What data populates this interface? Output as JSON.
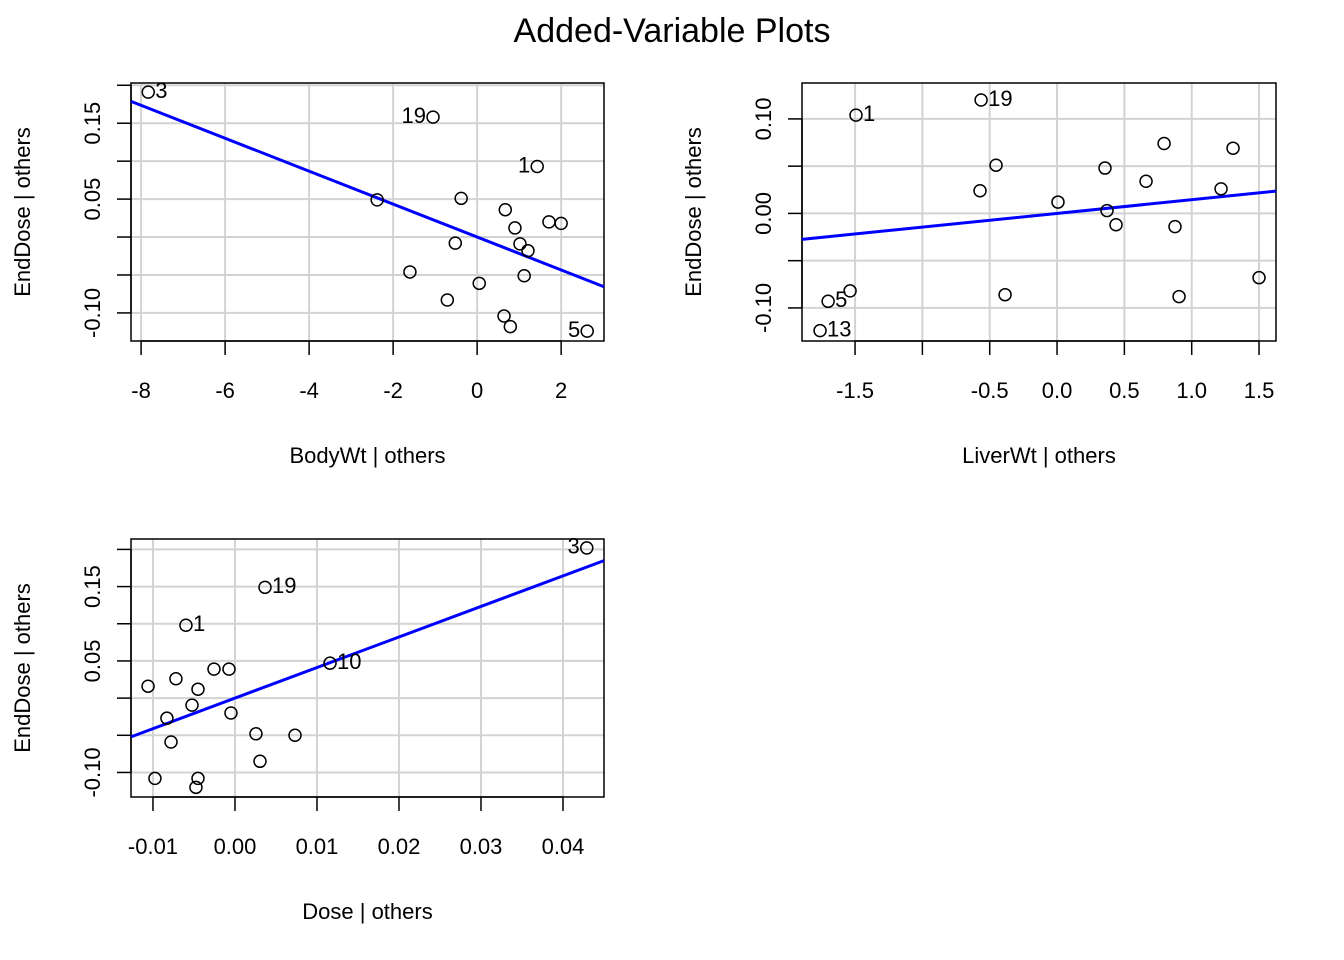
{
  "title": "Added-Variable Plots",
  "chart_data": [
    {
      "type": "scatter",
      "x_label": "BodyWt | others",
      "y_label": "EndDose  | others",
      "x": [
        -7.83,
        -1.05,
        1.43,
        -2.38,
        -0.38,
        0.67,
        0.9,
        1.71,
        2.0,
        1.02,
        1.21,
        -0.52,
        -1.6,
        1.12,
        0.05,
        -0.71,
        0.64,
        0.79,
        2.62
      ],
      "y": [
        0.191,
        0.158,
        0.093,
        0.049,
        0.051,
        0.036,
        0.012,
        0.02,
        0.018,
        -0.009,
        -0.018,
        -0.008,
        -0.046,
        -0.051,
        -0.061,
        -0.083,
        -0.104,
        -0.118,
        -0.124
      ],
      "point_labels": [
        "3",
        "19",
        "1",
        null,
        null,
        null,
        null,
        null,
        null,
        null,
        null,
        null,
        null,
        null,
        null,
        null,
        null,
        null,
        "5"
      ],
      "xlim": [
        -8.24,
        3.02
      ],
      "ylim": [
        -0.137,
        0.203
      ],
      "xticks": [
        -8,
        -6,
        -4,
        -2,
        0,
        2
      ],
      "yticks": [
        {
          "value": -0.1,
          "label": "-0.10"
        },
        0.05,
        0.15
      ],
      "yminor_ticks": [
        -0.05,
        0,
        0.1,
        0.2
      ],
      "grid": true,
      "point_color": "#000000",
      "fit_line": {
        "slope": -0.0217,
        "intercept": 0,
        "color": "#0000ff"
      }
    },
    {
      "type": "scatter",
      "x_label": "LiverWt | others",
      "y_label": "EndDose  | others",
      "x": [
        -0.564,
        -1.493,
        -0.453,
        -0.572,
        0.007,
        0.356,
        0.795,
        1.307,
        0.661,
        1.218,
        0.371,
        0.438,
        0.876,
        -0.386,
        0.906,
        1.5,
        -1.537,
        -1.7,
        -1.76
      ],
      "y": [
        0.12,
        0.104,
        0.051,
        0.024,
        0.012,
        0.048,
        0.074,
        0.069,
        0.034,
        0.026,
        0.003,
        -0.012,
        -0.014,
        -0.086,
        -0.088,
        -0.068,
        -0.082,
        -0.093,
        -0.124
      ],
      "point_labels": [
        "19",
        "1",
        null,
        null,
        null,
        null,
        null,
        null,
        null,
        null,
        null,
        null,
        null,
        null,
        null,
        null,
        null,
        "5",
        "13"
      ],
      "xlim": [
        -1.894,
        1.626
      ],
      "ylim": [
        -0.135,
        0.138
      ],
      "xticks": [
        -1.5,
        -0.5,
        {
          "value": 0,
          "label": "0.0"
        },
        0.5,
        {
          "value": 1,
          "label": "1.0"
        },
        1.5
      ],
      "xminor_ticks": [
        -1
      ],
      "yticks": [
        {
          "value": -0.1,
          "label": "-0.10"
        },
        {
          "value": 0,
          "label": "0.00"
        },
        {
          "value": 0.1,
          "label": "0.10"
        }
      ],
      "yminor_ticks": [
        -0.05,
        0.05
      ],
      "grid": true,
      "point_color": "#000000",
      "fit_line": {
        "slope": 0.0145,
        "intercept": 0,
        "color": "#0000ff"
      }
    },
    {
      "type": "scatter",
      "x_label": "Dose | others",
      "y_label": "EndDose  | others",
      "x": [
        0.0429,
        0.00366,
        -0.00598,
        0.01159,
        -0.00256,
        -0.00073,
        -0.0106,
        -0.0072,
        -0.00451,
        -0.00524,
        -0.00049,
        -0.0083,
        -0.0078,
        0.00256,
        0.00732,
        0.00305,
        -0.00976,
        -0.00451,
        -0.00476
      ],
      "y": [
        0.202,
        0.149,
        0.098,
        0.047,
        0.039,
        0.039,
        0.016,
        0.026,
        0.012,
        -0.0094,
        -0.02,
        -0.027,
        -0.059,
        -0.048,
        -0.05,
        -0.085,
        -0.108,
        -0.108,
        -0.12
      ],
      "point_labels": [
        "3",
        "19",
        "1",
        "10",
        null,
        null,
        null,
        null,
        null,
        null,
        null,
        null,
        null,
        null,
        null,
        null,
        null,
        null,
        null
      ],
      "xlim": [
        -0.01268,
        0.045
      ],
      "ylim": [
        -0.133,
        0.214
      ],
      "xticks": [
        -0.01,
        {
          "value": 0,
          "label": "0.00"
        },
        0.01,
        0.02,
        0.03,
        0.04
      ],
      "yticks": [
        {
          "value": -0.1,
          "label": "-0.10"
        },
        0.05,
        0.15
      ],
      "yminor_ticks": [
        -0.05,
        0,
        0.1,
        0.2
      ],
      "grid": true,
      "point_color": "#000000",
      "fit_line": {
        "slope": 4.11,
        "intercept": 0,
        "color": "#0000ff"
      }
    }
  ]
}
